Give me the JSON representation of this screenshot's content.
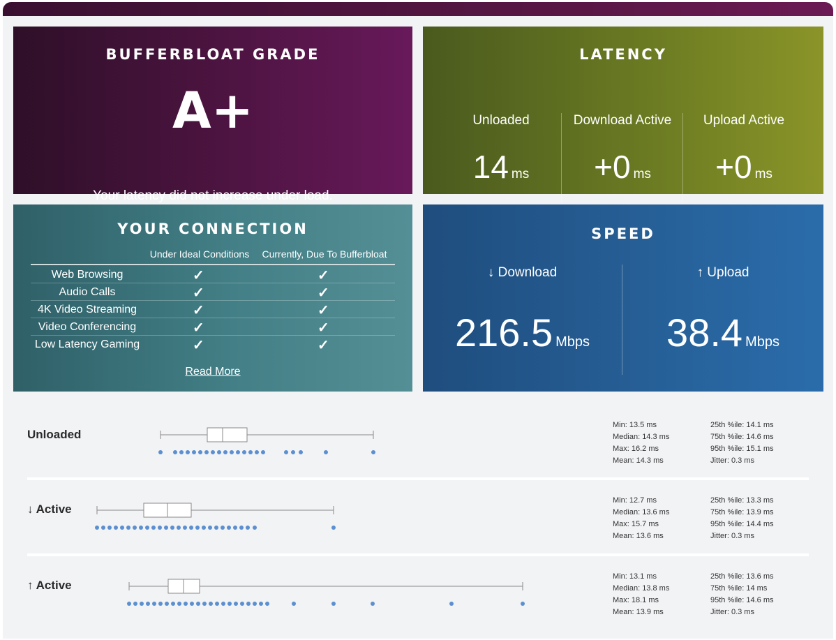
{
  "grade": {
    "title": "BUFFERBLOAT GRADE",
    "value": "A+",
    "description": "Your latency did not increase under load."
  },
  "latency": {
    "title": "LATENCY",
    "columns": [
      {
        "label": "Unloaded",
        "value": "14",
        "unit": "ms"
      },
      {
        "label": "Download Active",
        "value": "+0",
        "unit": "ms"
      },
      {
        "label": "Upload Active",
        "value": "+0",
        "unit": "ms"
      }
    ]
  },
  "connection": {
    "title": "YOUR CONNECTION",
    "headers": [
      "Under Ideal Conditions",
      "Currently, Due To Bufferbloat"
    ],
    "rows": [
      "Web Browsing",
      "Audio Calls",
      "4K Video Streaming",
      "Video Conferencing",
      "Low Latency Gaming"
    ],
    "check": "✓",
    "read_more": "Read More"
  },
  "speed": {
    "title": "SPEED",
    "download": {
      "label": "↓ Download",
      "value": "216.5",
      "unit": "Mbps"
    },
    "upload": {
      "label": "↑ Upload",
      "value": "38.4",
      "unit": "Mbps"
    }
  },
  "stats": [
    {
      "label": "Unloaded",
      "left": [
        "Min: 13.5 ms",
        "Median: 14.3 ms",
        "Max: 16.2 ms",
        "Mean: 14.3 ms"
      ],
      "right": [
        "25th %ile: 14.1 ms",
        "75th %ile: 14.6 ms",
        "95th %ile: 15.1 ms",
        "Jitter: 0.3 ms"
      ]
    },
    {
      "label": "↓ Active",
      "left": [
        "Min: 12.7 ms",
        "Median: 13.6 ms",
        "Max: 15.7 ms",
        "Mean: 13.6 ms"
      ],
      "right": [
        "25th %ile: 13.3 ms",
        "75th %ile: 13.9 ms",
        "95th %ile: 14.4 ms",
        "Jitter: 0.3 ms"
      ]
    },
    {
      "label": "↑ Active",
      "left": [
        "Min: 13.1 ms",
        "Median: 13.8 ms",
        "Max: 18.1 ms",
        "Mean: 13.9 ms"
      ],
      "right": [
        "25th %ile: 13.6 ms",
        "75th %ile: 14 ms",
        "95th %ile: 14.6 ms",
        "Jitter: 0.3 ms"
      ]
    }
  ],
  "colors": {
    "dot": "#5b8fd0",
    "box_stroke": "#8a8a8a"
  }
}
